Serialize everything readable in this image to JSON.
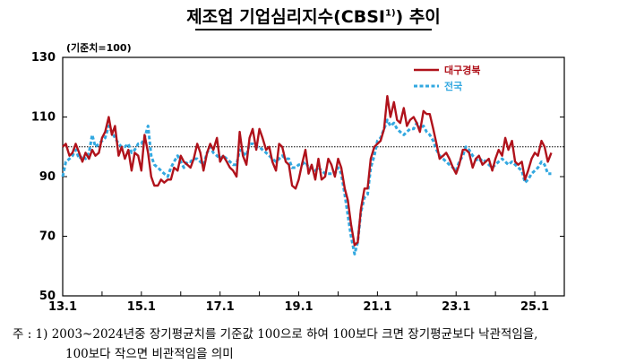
{
  "title": {
    "main": "제조업 기업심리지수(CBSI",
    "superscript": "1)",
    "close": ") 추이"
  },
  "chart_data": {
    "type": "line",
    "unit_label": "(기준치=100)",
    "ylim": [
      50,
      130
    ],
    "yticks": [
      50,
      70,
      90,
      110,
      130
    ],
    "xlim": [
      2013.0,
      2025.75
    ],
    "xtick_labels": [
      "13.1",
      "15.1",
      "17.1",
      "19.1",
      "21.1",
      "23.1",
      "25.1"
    ],
    "xtick_positions": [
      2013.0,
      2015.0,
      2017.0,
      2019.0,
      2021.0,
      2023.0,
      2025.0
    ],
    "reference_line": 100,
    "colors": {
      "대구경북": "#b0121b",
      "전국": "#33a8e0",
      "reference": "#000000"
    },
    "legend_position": "top-right",
    "series": [
      {
        "name": "대구경북",
        "style": "solid",
        "points": [
          [
            2013.0,
            100
          ],
          [
            2013.08,
            101
          ],
          [
            2013.17,
            97
          ],
          [
            2013.25,
            98
          ],
          [
            2013.33,
            101
          ],
          [
            2013.42,
            98
          ],
          [
            2013.5,
            95
          ],
          [
            2013.58,
            98
          ],
          [
            2013.67,
            96
          ],
          [
            2013.75,
            99
          ],
          [
            2013.83,
            97
          ],
          [
            2013.92,
            98
          ],
          [
            2014.0,
            103
          ],
          [
            2014.08,
            105
          ],
          [
            2014.17,
            110
          ],
          [
            2014.25,
            104
          ],
          [
            2014.33,
            107
          ],
          [
            2014.42,
            97
          ],
          [
            2014.5,
            100
          ],
          [
            2014.58,
            96
          ],
          [
            2014.67,
            99
          ],
          [
            2014.75,
            92
          ],
          [
            2014.83,
            98
          ],
          [
            2014.92,
            97
          ],
          [
            2015.0,
            92
          ],
          [
            2015.08,
            104
          ],
          [
            2015.17,
            98
          ],
          [
            2015.25,
            90
          ],
          [
            2015.33,
            87
          ],
          [
            2015.42,
            87
          ],
          [
            2015.5,
            89
          ],
          [
            2015.58,
            88
          ],
          [
            2015.67,
            89
          ],
          [
            2015.75,
            89
          ],
          [
            2015.83,
            93
          ],
          [
            2015.92,
            92
          ],
          [
            2016.0,
            97
          ],
          [
            2016.08,
            95
          ],
          [
            2016.17,
            94
          ],
          [
            2016.25,
            93
          ],
          [
            2016.33,
            96
          ],
          [
            2016.42,
            101
          ],
          [
            2016.5,
            98
          ],
          [
            2016.58,
            92
          ],
          [
            2016.67,
            98
          ],
          [
            2016.75,
            101
          ],
          [
            2016.83,
            99
          ],
          [
            2016.92,
            103
          ],
          [
            2017.0,
            95
          ],
          [
            2017.08,
            97
          ],
          [
            2017.17,
            95
          ],
          [
            2017.25,
            93
          ],
          [
            2017.33,
            92
          ],
          [
            2017.42,
            90
          ],
          [
            2017.5,
            105
          ],
          [
            2017.58,
            97
          ],
          [
            2017.67,
            94
          ],
          [
            2017.75,
            103
          ],
          [
            2017.83,
            106
          ],
          [
            2017.92,
            99
          ],
          [
            2018.0,
            106
          ],
          [
            2018.08,
            103
          ],
          [
            2018.17,
            99
          ],
          [
            2018.25,
            100
          ],
          [
            2018.33,
            95
          ],
          [
            2018.42,
            92
          ],
          [
            2018.5,
            101
          ],
          [
            2018.58,
            100
          ],
          [
            2018.67,
            95
          ],
          [
            2018.75,
            94
          ],
          [
            2018.83,
            87
          ],
          [
            2018.92,
            86
          ],
          [
            2019.0,
            89
          ],
          [
            2019.08,
            94
          ],
          [
            2019.17,
            99
          ],
          [
            2019.25,
            91
          ],
          [
            2019.33,
            94
          ],
          [
            2019.42,
            89
          ],
          [
            2019.5,
            96
          ],
          [
            2019.58,
            89
          ],
          [
            2019.67,
            90
          ],
          [
            2019.75,
            96
          ],
          [
            2019.83,
            94
          ],
          [
            2019.92,
            90
          ],
          [
            2020.0,
            96
          ],
          [
            2020.08,
            93
          ],
          [
            2020.17,
            86
          ],
          [
            2020.25,
            82
          ],
          [
            2020.33,
            74
          ],
          [
            2020.42,
            67
          ],
          [
            2020.5,
            68
          ],
          [
            2020.58,
            79
          ],
          [
            2020.67,
            86
          ],
          [
            2020.75,
            86
          ],
          [
            2020.83,
            96
          ],
          [
            2020.92,
            100
          ],
          [
            2021.0,
            101
          ],
          [
            2021.08,
            102
          ],
          [
            2021.17,
            106
          ],
          [
            2021.25,
            117
          ],
          [
            2021.33,
            110
          ],
          [
            2021.42,
            115
          ],
          [
            2021.5,
            109
          ],
          [
            2021.58,
            108
          ],
          [
            2021.67,
            113
          ],
          [
            2021.75,
            107
          ],
          [
            2021.83,
            109
          ],
          [
            2021.92,
            110
          ],
          [
            2022.0,
            108
          ],
          [
            2022.08,
            105
          ],
          [
            2022.17,
            112
          ],
          [
            2022.25,
            111
          ],
          [
            2022.33,
            111
          ],
          [
            2022.42,
            106
          ],
          [
            2022.5,
            101
          ],
          [
            2022.58,
            96
          ],
          [
            2022.67,
            97
          ],
          [
            2022.75,
            98
          ],
          [
            2022.83,
            96
          ],
          [
            2022.92,
            93
          ],
          [
            2023.0,
            91
          ],
          [
            2023.08,
            94
          ],
          [
            2023.17,
            99
          ],
          [
            2023.25,
            99
          ],
          [
            2023.33,
            98
          ],
          [
            2023.42,
            93
          ],
          [
            2023.5,
            96
          ],
          [
            2023.58,
            97
          ],
          [
            2023.67,
            94
          ],
          [
            2023.75,
            95
          ],
          [
            2023.83,
            96
          ],
          [
            2023.92,
            92
          ],
          [
            2024.0,
            96
          ],
          [
            2024.08,
            99
          ],
          [
            2024.17,
            97
          ],
          [
            2024.25,
            103
          ],
          [
            2024.33,
            99
          ],
          [
            2024.42,
            102
          ],
          [
            2024.5,
            95
          ],
          [
            2024.58,
            94
          ],
          [
            2024.67,
            95
          ],
          [
            2024.75,
            89
          ],
          [
            2024.83,
            92
          ],
          [
            2024.92,
            96
          ],
          [
            2025.0,
            98
          ],
          [
            2025.08,
            97
          ],
          [
            2025.17,
            102
          ],
          [
            2025.25,
            100
          ],
          [
            2025.33,
            95
          ],
          [
            2025.42,
            98
          ]
        ]
      },
      {
        "name": "전국",
        "style": "dashed",
        "points": [
          [
            2013.0,
            90
          ],
          [
            2013.08,
            95
          ],
          [
            2013.17,
            96
          ],
          [
            2013.25,
            97
          ],
          [
            2013.33,
            99
          ],
          [
            2013.42,
            96
          ],
          [
            2013.5,
            97
          ],
          [
            2013.58,
            96
          ],
          [
            2013.67,
            98
          ],
          [
            2013.75,
            104
          ],
          [
            2013.83,
            100
          ],
          [
            2013.92,
            101
          ],
          [
            2014.0,
            102
          ],
          [
            2014.08,
            103
          ],
          [
            2014.17,
            107
          ],
          [
            2014.25,
            105
          ],
          [
            2014.33,
            103
          ],
          [
            2014.42,
            101
          ],
          [
            2014.5,
            100
          ],
          [
            2014.58,
            100
          ],
          [
            2014.67,
            101
          ],
          [
            2014.75,
            98
          ],
          [
            2014.83,
            99
          ],
          [
            2014.92,
            101
          ],
          [
            2015.0,
            101
          ],
          [
            2015.08,
            103
          ],
          [
            2015.17,
            107
          ],
          [
            2015.25,
            97
          ],
          [
            2015.33,
            94
          ],
          [
            2015.42,
            93
          ],
          [
            2015.5,
            92
          ],
          [
            2015.58,
            91
          ],
          [
            2015.67,
            90
          ],
          [
            2015.75,
            93
          ],
          [
            2015.83,
            95
          ],
          [
            2015.92,
            97
          ],
          [
            2016.0,
            95
          ],
          [
            2016.08,
            93
          ],
          [
            2016.17,
            95
          ],
          [
            2016.25,
            95
          ],
          [
            2016.33,
            96
          ],
          [
            2016.42,
            96
          ],
          [
            2016.5,
            95
          ],
          [
            2016.58,
            94
          ],
          [
            2016.67,
            98
          ],
          [
            2016.75,
            100
          ],
          [
            2016.83,
            98
          ],
          [
            2016.92,
            97
          ],
          [
            2017.0,
            96
          ],
          [
            2017.08,
            97
          ],
          [
            2017.17,
            96
          ],
          [
            2017.25,
            95
          ],
          [
            2017.33,
            94
          ],
          [
            2017.42,
            94
          ],
          [
            2017.5,
            99
          ],
          [
            2017.58,
            98
          ],
          [
            2017.67,
            97
          ],
          [
            2017.75,
            101
          ],
          [
            2017.83,
            101
          ],
          [
            2017.92,
            100
          ],
          [
            2018.0,
            100
          ],
          [
            2018.08,
            99
          ],
          [
            2018.17,
            98
          ],
          [
            2018.25,
            97
          ],
          [
            2018.33,
            96
          ],
          [
            2018.42,
            95
          ],
          [
            2018.5,
            96
          ],
          [
            2018.58,
            97
          ],
          [
            2018.67,
            96
          ],
          [
            2018.75,
            96
          ],
          [
            2018.83,
            93
          ],
          [
            2018.92,
            93
          ],
          [
            2019.0,
            94
          ],
          [
            2019.08,
            94
          ],
          [
            2019.17,
            95
          ],
          [
            2019.25,
            93
          ],
          [
            2019.33,
            93
          ],
          [
            2019.42,
            92
          ],
          [
            2019.5,
            93
          ],
          [
            2019.58,
            92
          ],
          [
            2019.67,
            91
          ],
          [
            2019.75,
            91
          ],
          [
            2019.83,
            91
          ],
          [
            2019.92,
            91
          ],
          [
            2020.0,
            93
          ],
          [
            2020.08,
            91
          ],
          [
            2020.17,
            84
          ],
          [
            2020.25,
            77
          ],
          [
            2020.33,
            70
          ],
          [
            2020.42,
            64
          ],
          [
            2020.5,
            68
          ],
          [
            2020.58,
            78
          ],
          [
            2020.67,
            83
          ],
          [
            2020.75,
            84
          ],
          [
            2020.83,
            93
          ],
          [
            2020.92,
            97
          ],
          [
            2021.0,
            102
          ],
          [
            2021.08,
            103
          ],
          [
            2021.17,
            106
          ],
          [
            2021.25,
            109
          ],
          [
            2021.33,
            107
          ],
          [
            2021.42,
            108
          ],
          [
            2021.5,
            106
          ],
          [
            2021.58,
            105
          ],
          [
            2021.67,
            104
          ],
          [
            2021.75,
            105
          ],
          [
            2021.83,
            106
          ],
          [
            2021.92,
            106
          ],
          [
            2022.0,
            108
          ],
          [
            2022.08,
            106
          ],
          [
            2022.17,
            107
          ],
          [
            2022.25,
            105
          ],
          [
            2022.33,
            104
          ],
          [
            2022.42,
            102
          ],
          [
            2022.5,
            99
          ],
          [
            2022.58,
            97
          ],
          [
            2022.67,
            96
          ],
          [
            2022.75,
            95
          ],
          [
            2022.83,
            94
          ],
          [
            2022.92,
            93
          ],
          [
            2023.0,
            92
          ],
          [
            2023.08,
            95
          ],
          [
            2023.17,
            97
          ],
          [
            2023.25,
            100
          ],
          [
            2023.33,
            99
          ],
          [
            2023.42,
            97
          ],
          [
            2023.5,
            96
          ],
          [
            2023.58,
            95
          ],
          [
            2023.67,
            96
          ],
          [
            2023.75,
            95
          ],
          [
            2023.83,
            94
          ],
          [
            2023.92,
            93
          ],
          [
            2024.0,
            94
          ],
          [
            2024.08,
            95
          ],
          [
            2024.17,
            96
          ],
          [
            2024.25,
            95
          ],
          [
            2024.33,
            94
          ],
          [
            2024.42,
            95
          ],
          [
            2024.5,
            94
          ],
          [
            2024.58,
            93
          ],
          [
            2024.67,
            92
          ],
          [
            2024.75,
            88
          ],
          [
            2024.83,
            89
          ],
          [
            2024.92,
            91
          ],
          [
            2025.0,
            92
          ],
          [
            2025.08,
            93
          ],
          [
            2025.17,
            95
          ],
          [
            2025.25,
            94
          ],
          [
            2025.33,
            91
          ],
          [
            2025.42,
            91
          ]
        ]
      }
    ]
  },
  "notes": {
    "line1": "주 : 1) 2003~2024년중 장기평균치를 기준값 100으로 하여 100보다 크면 장기평균보다 낙관적임을,",
    "line2": "100보다 작으면 비관적임을 의미"
  }
}
